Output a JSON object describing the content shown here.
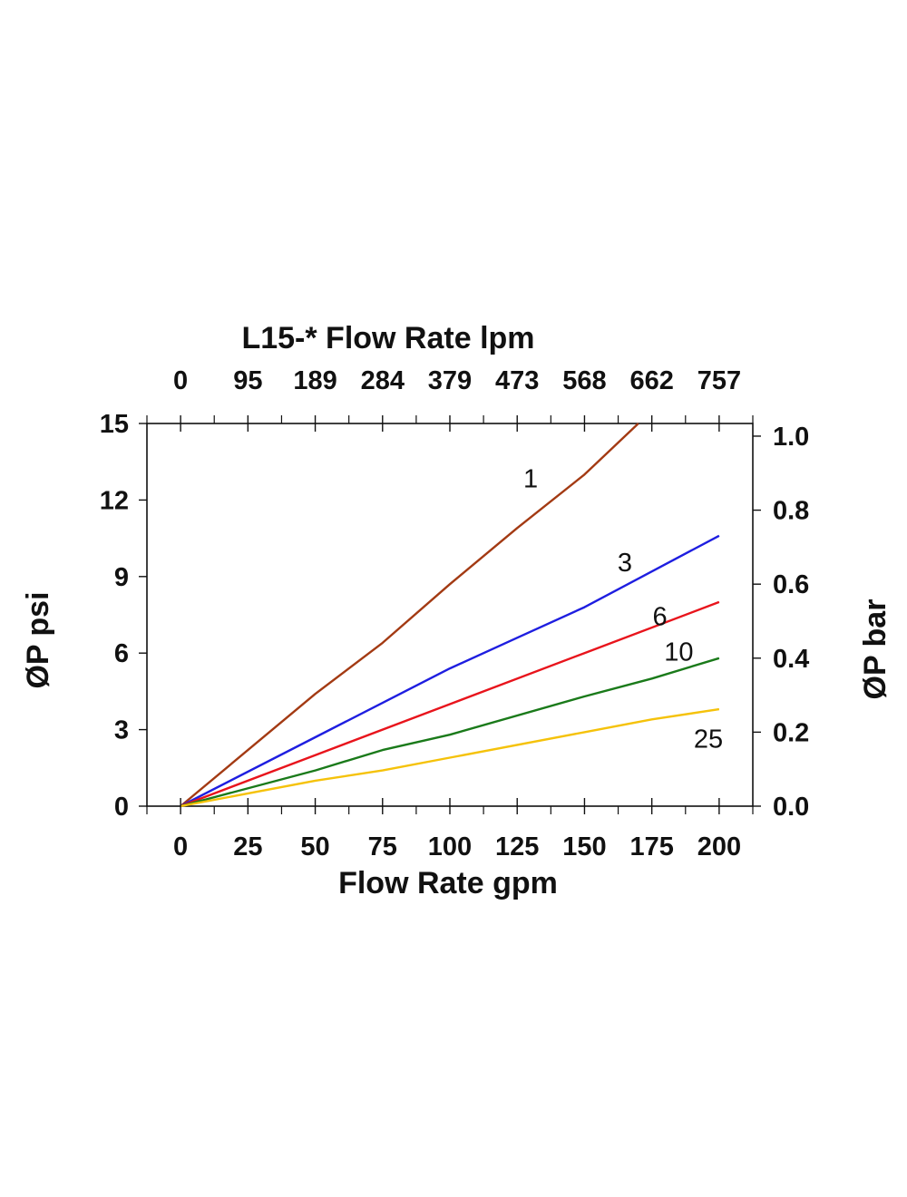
{
  "chart_data": {
    "type": "line",
    "title": "L15-* Flow Rate lpm",
    "xlabel": "Flow Rate gpm",
    "ylabel_left": "ØP psi",
    "ylabel_right": "ØP bar",
    "xlim": [
      -12.5,
      212.5
    ],
    "ylim": [
      0,
      15
    ],
    "x_ticks": [
      0,
      25,
      50,
      75,
      100,
      125,
      150,
      175,
      200
    ],
    "x_tick_labels": [
      "0",
      "25",
      "50",
      "75",
      "100",
      "125",
      "150",
      "175",
      "200"
    ],
    "top_x_tick_labels": [
      "0",
      "95",
      "189",
      "284",
      "379",
      "473",
      "568",
      "662",
      "757"
    ],
    "y_ticks": [
      0,
      3,
      6,
      9,
      12,
      15
    ],
    "y_tick_labels": [
      "0",
      "3",
      "6",
      "9",
      "12",
      "15"
    ],
    "right_y_ticks": [
      0.0,
      0.2,
      0.4,
      0.6,
      0.8,
      1.0
    ],
    "right_y_tick_labels": [
      "0.0",
      "0.2",
      "0.4",
      "0.6",
      "0.8",
      "1.0"
    ],
    "psi_per_bar": 14.5038,
    "series": [
      {
        "name": "1",
        "color": "#a33a13",
        "x": [
          0,
          50,
          75,
          100,
          125,
          150,
          170
        ],
        "y": [
          0,
          4.4,
          6.4,
          8.7,
          10.9,
          13.0,
          15.0
        ]
      },
      {
        "name": "3",
        "color": "#1e1ee0",
        "x": [
          0,
          50,
          100,
          125,
          150,
          200
        ],
        "y": [
          0,
          2.7,
          5.4,
          6.6,
          7.8,
          10.6
        ]
      },
      {
        "name": "6",
        "color": "#e8141c",
        "x": [
          0,
          50,
          100,
          150,
          200
        ],
        "y": [
          0,
          2.0,
          4.0,
          6.0,
          8.0
        ]
      },
      {
        "name": "10",
        "color": "#1a7a1a",
        "x": [
          0,
          50,
          75,
          100,
          150,
          175,
          200
        ],
        "y": [
          0,
          1.4,
          2.2,
          2.8,
          4.3,
          5.0,
          5.8
        ]
      },
      {
        "name": "25",
        "color": "#f5c20a",
        "x": [
          0,
          50,
          75,
          100,
          150,
          175,
          200
        ],
        "y": [
          0,
          1.0,
          1.4,
          1.9,
          2.9,
          3.4,
          3.8
        ]
      }
    ]
  }
}
